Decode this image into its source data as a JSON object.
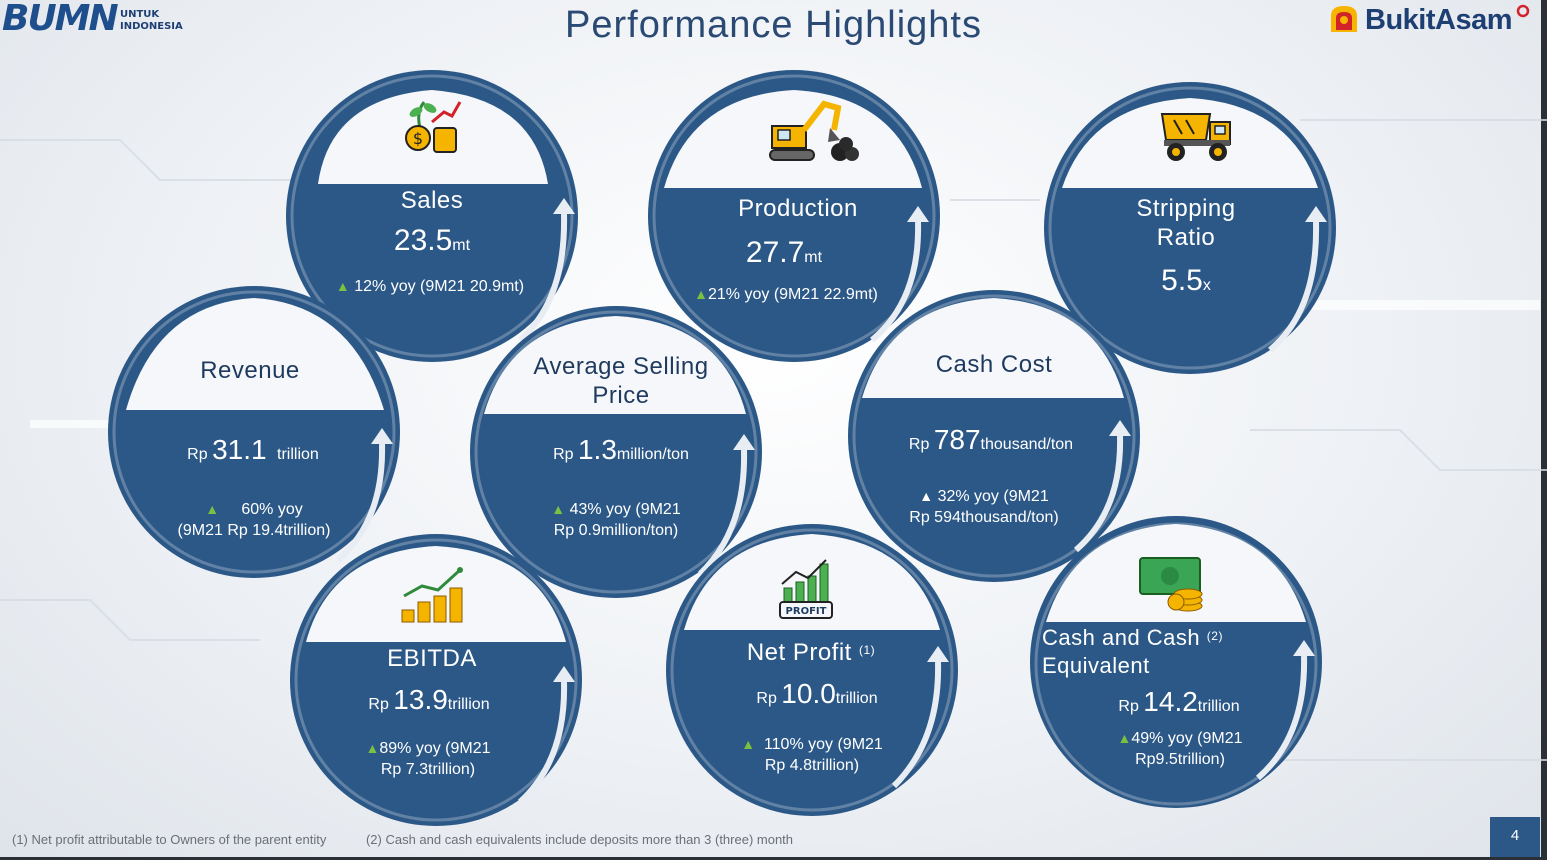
{
  "header": {
    "title": "Performance Highlights",
    "bumn_logo_text": "BUMN",
    "bumn_tagline_1": "UNTUK",
    "bumn_tagline_2": "INDONESIA",
    "company_logo_text": "BukitAsam"
  },
  "colors": {
    "circle_fill": "#2c5887",
    "label_text": "#1e3a5f",
    "up_arrow": "#7ac142",
    "title": "#2a4a74"
  },
  "metrics": {
    "sales": {
      "label": "Sales",
      "value": "23.5",
      "unit": "mt",
      "yoy": "12% yoy (9M21 20.9mt)",
      "icon": "money-plant-growth-icon"
    },
    "production": {
      "label": "Production",
      "value": "27.7",
      "unit": "mt",
      "yoy": "21% yoy (9M21 22.9mt)",
      "icon": "excavator-coal-icon"
    },
    "stripping_ratio": {
      "label_1": "Stripping",
      "label_2": "Ratio",
      "value": "5.5",
      "unit": "x",
      "icon": "dump-truck-icon"
    },
    "revenue": {
      "label": "Revenue",
      "prefix": "Rp",
      "value": "31.1",
      "unit": "trillion",
      "yoy_1": "60% yoy",
      "yoy_2": "(9M21 Rp 19.4trillion)"
    },
    "asp": {
      "label_1": "Average Selling",
      "label_2": "Price",
      "prefix": "Rp",
      "value": "1.3",
      "unit": "million/ton",
      "yoy_1": "43% yoy (9M21",
      "yoy_2": "Rp 0.9million/ton)"
    },
    "cash_cost": {
      "label": "Cash Cost",
      "prefix": "Rp",
      "value": "787",
      "unit": "thousand/ton",
      "yoy_1": "32% yoy (9M21",
      "yoy_2": "Rp 594thousand/ton)"
    },
    "ebitda": {
      "label": "EBITDA",
      "prefix": "Rp",
      "value": "13.9",
      "unit": "trillion",
      "yoy_1": "89% yoy (9M21",
      "yoy_2": "Rp 7.3trillion)",
      "icon": "coin-stacks-trend-icon"
    },
    "net_profit": {
      "label": "Net Profit",
      "footnote": "(1)",
      "prefix": "Rp",
      "value": "10.0",
      "unit": "trillion",
      "yoy_1": "110% yoy (9M21",
      "yoy_2": "Rp 4.8trillion)",
      "icon": "profit-chart-icon",
      "icon_text": "PROFIT"
    },
    "cash": {
      "label_1": "Cash and Cash",
      "label_2": "Equivalent",
      "footnote": "(2)",
      "prefix": "Rp",
      "value": "14.2",
      "unit": "trillion",
      "yoy_1": "49% yoy (9M21",
      "yoy_2": "Rp9.5trillion)",
      "icon": "cash-coins-icon"
    }
  },
  "footer": {
    "note_1": "(1) Net profit attributable to Owners of the parent entity",
    "note_2": "(2) Cash and cash equivalents include deposits more than 3 (three) month",
    "page_number": "4"
  }
}
